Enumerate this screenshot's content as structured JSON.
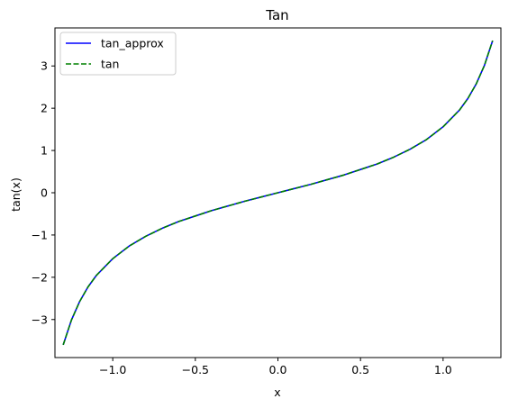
{
  "chart_data": {
    "type": "line",
    "title": "Tan",
    "xlabel": "x",
    "ylabel": "tan(x)",
    "xlim": [
      -1.35,
      1.35
    ],
    "ylim": [
      -3.9,
      3.9
    ],
    "x_ticks": [
      -1.0,
      -0.5,
      0.0,
      0.5,
      1.0
    ],
    "x_tick_labels": [
      "−1.0",
      "−0.5",
      "0.0",
      "0.5",
      "1.0"
    ],
    "y_ticks": [
      -3,
      -2,
      -1,
      0,
      1,
      2,
      3
    ],
    "y_tick_labels": [
      "−3",
      "−2",
      "−1",
      "0",
      "1",
      "2",
      "3"
    ],
    "grid": false,
    "legend_position": "top-left",
    "x": [
      -1.3,
      -1.25,
      -1.2,
      -1.15,
      -1.1,
      -1.0,
      -0.9,
      -0.8,
      -0.7,
      -0.6,
      -0.5,
      -0.4,
      -0.3,
      -0.2,
      -0.1,
      0.0,
      0.1,
      0.2,
      0.3,
      0.4,
      0.5,
      0.6,
      0.7,
      0.8,
      0.9,
      1.0,
      1.1,
      1.15,
      1.2,
      1.25,
      1.3
    ],
    "series": [
      {
        "name": "tan_approx",
        "color": "#0000ff",
        "style": "solid",
        "values": [
          -3.6,
          -3.01,
          -2.57,
          -2.23,
          -1.96,
          -1.56,
          -1.26,
          -1.03,
          -0.84,
          -0.68,
          -0.55,
          -0.42,
          -0.31,
          -0.2,
          -0.1,
          0.0,
          0.1,
          0.2,
          0.31,
          0.42,
          0.55,
          0.68,
          0.84,
          1.03,
          1.26,
          1.56,
          1.96,
          2.23,
          2.57,
          3.01,
          3.6
        ]
      },
      {
        "name": "tan",
        "color": "#008000",
        "style": "dashed",
        "values": [
          -3.6,
          -3.01,
          -2.57,
          -2.23,
          -1.96,
          -1.56,
          -1.26,
          -1.03,
          -0.84,
          -0.68,
          -0.55,
          -0.42,
          -0.31,
          -0.2,
          -0.1,
          0.0,
          0.1,
          0.2,
          0.31,
          0.42,
          0.55,
          0.68,
          0.84,
          1.03,
          1.26,
          1.56,
          1.96,
          2.23,
          2.57,
          3.01,
          3.6
        ]
      }
    ]
  }
}
